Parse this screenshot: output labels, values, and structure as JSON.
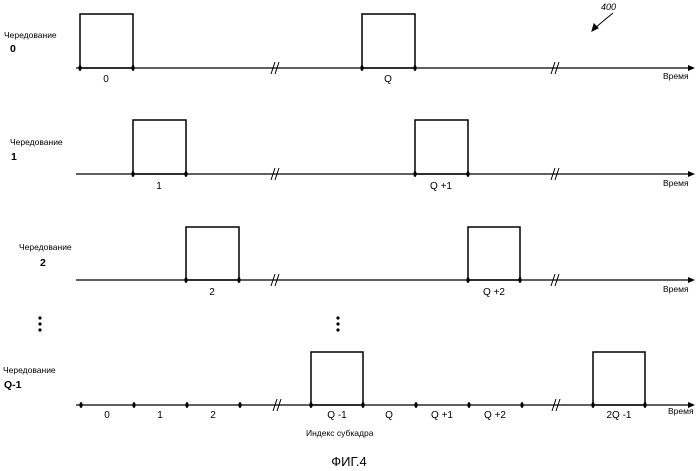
{
  "figure": {
    "ref_number": "400",
    "caption": "ФИГ.4",
    "axis_label": "Время",
    "index_label": "Индекс субкадра",
    "rows": [
      {
        "label": "Чередование",
        "id": "0",
        "ticks": [
          "0",
          "Q"
        ]
      },
      {
        "label": "Чередование",
        "id": "1",
        "ticks": [
          "1",
          "Q +1"
        ]
      },
      {
        "label": "Чередование",
        "id": "2",
        "ticks": [
          "2",
          "Q +2"
        ]
      },
      {
        "label": "Чередование",
        "id": "Q-1",
        "ticks": [
          "0",
          "1",
          "2",
          "Q -1",
          "Q",
          "Q +1",
          "Q +2",
          "2Q -1"
        ]
      }
    ]
  }
}
